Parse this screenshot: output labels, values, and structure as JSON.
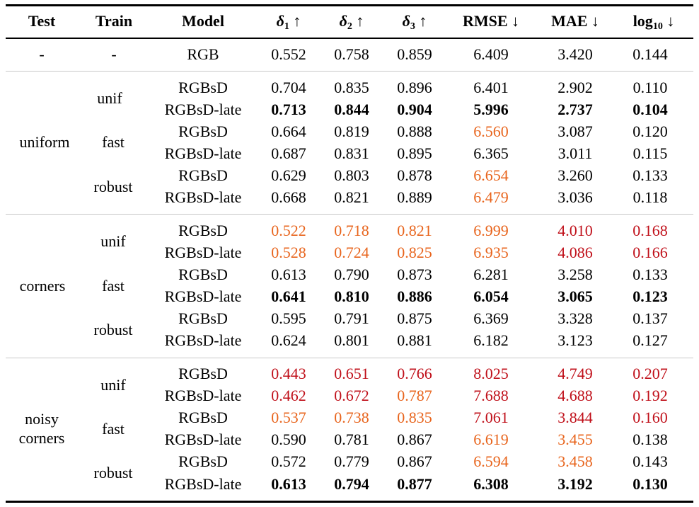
{
  "colors": {
    "orange": "#e8641c",
    "red": "#c0101a",
    "rule": "#000000",
    "divider": "#c8c8c8"
  },
  "headers": {
    "test": "Test",
    "train": "Train",
    "model": "Model",
    "d1": {
      "sym": "δ",
      "sub": "1",
      "arrow": " ↑"
    },
    "d2": {
      "sym": "δ",
      "sub": "2",
      "arrow": " ↑"
    },
    "d3": {
      "sym": "δ",
      "sub": "3",
      "arrow": " ↑"
    },
    "rmse": "RMSE ↓",
    "mae": "MAE ↓",
    "log": {
      "base": "log",
      "sub": "10",
      "arrow": " ↓"
    }
  },
  "groups": [
    {
      "test": "-",
      "trains": [
        {
          "label": "-",
          "rows": [
            0
          ]
        }
      ]
    },
    {
      "test": "uniform",
      "trains": [
        {
          "label": "unif",
          "rows": [
            1,
            2
          ]
        },
        {
          "label": "fast",
          "rows": [
            3,
            4
          ]
        },
        {
          "label": "robust",
          "rows": [
            5,
            6
          ]
        }
      ]
    },
    {
      "test": "corners",
      "trains": [
        {
          "label": "unif",
          "rows": [
            7,
            8
          ]
        },
        {
          "label": "fast",
          "rows": [
            9,
            10
          ]
        },
        {
          "label": "robust",
          "rows": [
            11,
            12
          ]
        }
      ]
    },
    {
      "test_line1": "noisy",
      "test_line2": "corners",
      "trains": [
        {
          "label": "unif",
          "rows": [
            13,
            14
          ]
        },
        {
          "label": "fast",
          "rows": [
            15,
            16
          ]
        },
        {
          "label": "robust",
          "rows": [
            17,
            18
          ]
        }
      ]
    }
  ],
  "rows": [
    {
      "model": "RGB",
      "vals": [
        "0.552",
        "0.758",
        "0.859",
        "6.409",
        "3.420",
        "0.144"
      ],
      "style": [
        "",
        "",
        "",
        "",
        "",
        ""
      ]
    },
    {
      "model": "RGBsD",
      "vals": [
        "0.704",
        "0.835",
        "0.896",
        "6.401",
        "2.902",
        "0.110"
      ],
      "style": [
        "",
        "",
        "",
        "",
        "",
        ""
      ]
    },
    {
      "model": "RGBsD-late",
      "vals": [
        "0.713",
        "0.844",
        "0.904",
        "5.996",
        "2.737",
        "0.104"
      ],
      "style": [
        "bold",
        "bold",
        "bold",
        "bold",
        "bold",
        "bold"
      ]
    },
    {
      "model": "RGBsD",
      "vals": [
        "0.664",
        "0.819",
        "0.888",
        "6.560",
        "3.087",
        "0.120"
      ],
      "style": [
        "",
        "",
        "",
        "orange",
        "",
        ""
      ]
    },
    {
      "model": "RGBsD-late",
      "vals": [
        "0.687",
        "0.831",
        "0.895",
        "6.365",
        "3.011",
        "0.115"
      ],
      "style": [
        "",
        "",
        "",
        "",
        "",
        ""
      ]
    },
    {
      "model": "RGBsD",
      "vals": [
        "0.629",
        "0.803",
        "0.878",
        "6.654",
        "3.260",
        "0.133"
      ],
      "style": [
        "",
        "",
        "",
        "orange",
        "",
        ""
      ]
    },
    {
      "model": "RGBsD-late",
      "vals": [
        "0.668",
        "0.821",
        "0.889",
        "6.479",
        "3.036",
        "0.118"
      ],
      "style": [
        "",
        "",
        "",
        "orange",
        "",
        ""
      ]
    },
    {
      "model": "RGBsD",
      "vals": [
        "0.522",
        "0.718",
        "0.821",
        "6.999",
        "4.010",
        "0.168"
      ],
      "style": [
        "orange",
        "orange",
        "orange",
        "orange",
        "red",
        "red"
      ]
    },
    {
      "model": "RGBsD-late",
      "vals": [
        "0.528",
        "0.724",
        "0.825",
        "6.935",
        "4.086",
        "0.166"
      ],
      "style": [
        "orange",
        "orange",
        "orange",
        "orange",
        "red",
        "red"
      ]
    },
    {
      "model": "RGBsD",
      "vals": [
        "0.613",
        "0.790",
        "0.873",
        "6.281",
        "3.258",
        "0.133"
      ],
      "style": [
        "",
        "",
        "",
        "",
        "",
        ""
      ]
    },
    {
      "model": "RGBsD-late",
      "vals": [
        "0.641",
        "0.810",
        "0.886",
        "6.054",
        "3.065",
        "0.123"
      ],
      "style": [
        "bold",
        "bold",
        "bold",
        "bold",
        "bold",
        "bold"
      ]
    },
    {
      "model": "RGBsD",
      "vals": [
        "0.595",
        "0.791",
        "0.875",
        "6.369",
        "3.328",
        "0.137"
      ],
      "style": [
        "",
        "",
        "",
        "",
        "",
        ""
      ]
    },
    {
      "model": "RGBsD-late",
      "vals": [
        "0.624",
        "0.801",
        "0.881",
        "6.182",
        "3.123",
        "0.127"
      ],
      "style": [
        "",
        "",
        "",
        "",
        "",
        ""
      ]
    },
    {
      "model": "RGBsD",
      "vals": [
        "0.443",
        "0.651",
        "0.766",
        "8.025",
        "4.749",
        "0.207"
      ],
      "style": [
        "red",
        "red",
        "red",
        "red",
        "red",
        "red"
      ]
    },
    {
      "model": "RGBsD-late",
      "vals": [
        "0.462",
        "0.672",
        "0.787",
        "7.688",
        "4.688",
        "0.192"
      ],
      "style": [
        "red",
        "red",
        "orange",
        "red",
        "red",
        "red"
      ]
    },
    {
      "model": "RGBsD",
      "vals": [
        "0.537",
        "0.738",
        "0.835",
        "7.061",
        "3.844",
        "0.160"
      ],
      "style": [
        "orange",
        "orange",
        "orange",
        "red",
        "red",
        "red"
      ]
    },
    {
      "model": "RGBsD-late",
      "vals": [
        "0.590",
        "0.781",
        "0.867",
        "6.619",
        "3.455",
        "0.138"
      ],
      "style": [
        "",
        "",
        "",
        "orange",
        "orange",
        ""
      ]
    },
    {
      "model": "RGBsD",
      "vals": [
        "0.572",
        "0.779",
        "0.867",
        "6.594",
        "3.458",
        "0.143"
      ],
      "style": [
        "",
        "",
        "",
        "orange",
        "orange",
        ""
      ]
    },
    {
      "model": "RGBsD-late",
      "vals": [
        "0.613",
        "0.794",
        "0.877",
        "6.308",
        "3.192",
        "0.130"
      ],
      "style": [
        "bold",
        "bold",
        "bold",
        "bold",
        "bold",
        "bold"
      ]
    }
  ]
}
